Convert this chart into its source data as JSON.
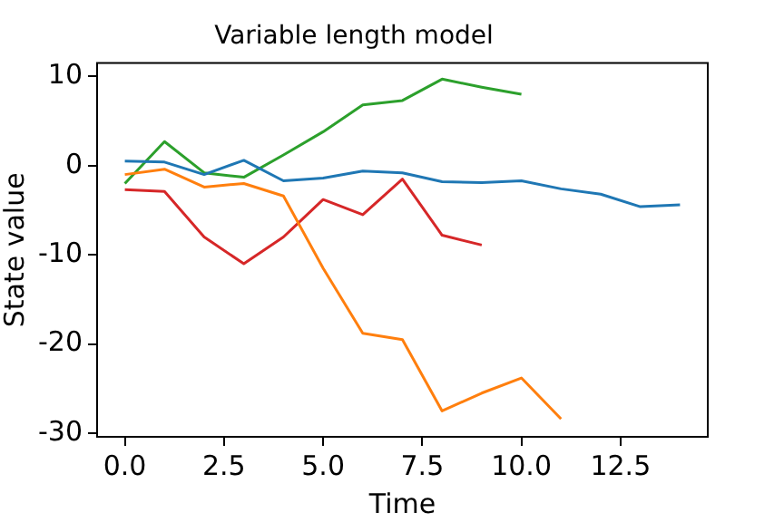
{
  "chart_data": {
    "type": "line",
    "title": "Variable length model",
    "xlabel": "Time",
    "ylabel": "State value",
    "xlim": [
      -0.7,
      14.7
    ],
    "ylim": [
      -30.4,
      11.5
    ],
    "xticks": [
      {
        "value": 0,
        "label": "0.0"
      },
      {
        "value": 2.5,
        "label": "2.5"
      },
      {
        "value": 5,
        "label": "5.0"
      },
      {
        "value": 7.5,
        "label": "7.5"
      },
      {
        "value": 10,
        "label": "10.0"
      },
      {
        "value": 12.5,
        "label": "12.5"
      }
    ],
    "yticks": [
      -30,
      -20,
      -10,
      0,
      10
    ],
    "grid": false,
    "legend": false,
    "marker": "none",
    "line_style": "solid",
    "series": [
      {
        "color": "#1f77b4",
        "x": [
          0,
          1,
          2,
          3,
          4,
          5,
          6,
          7,
          8,
          9,
          10,
          11,
          12,
          13,
          14
        ],
        "values": [
          0.5,
          0.4,
          -1.0,
          0.6,
          -1.7,
          -1.4,
          -0.6,
          -0.8,
          -1.8,
          -1.9,
          -1.7,
          -2.6,
          -3.2,
          -4.6,
          -4.4
        ]
      },
      {
        "color": "#ff7f0e",
        "x": [
          0,
          1,
          2,
          3,
          4,
          5,
          6,
          7,
          8,
          9,
          10,
          11
        ],
        "values": [
          -1.0,
          -0.4,
          -2.4,
          -2.0,
          -3.4,
          -11.5,
          -18.8,
          -19.5,
          -27.5,
          -25.5,
          -23.8,
          -28.4
        ]
      },
      {
        "color": "#2ca02c",
        "x": [
          0,
          1,
          2,
          3,
          4,
          5,
          6,
          7,
          8,
          9,
          10
        ],
        "values": [
          -2.0,
          2.7,
          -0.8,
          -1.3,
          1.2,
          3.8,
          6.8,
          7.3,
          9.7,
          8.8,
          8.0
        ]
      },
      {
        "color": "#d62728",
        "x": [
          0,
          1,
          2,
          3,
          4,
          5,
          6,
          7,
          8,
          9
        ],
        "values": [
          -2.7,
          -2.9,
          -8.0,
          -11.0,
          -8.0,
          -3.8,
          -5.5,
          -1.5,
          -7.8,
          -8.9
        ]
      }
    ]
  }
}
